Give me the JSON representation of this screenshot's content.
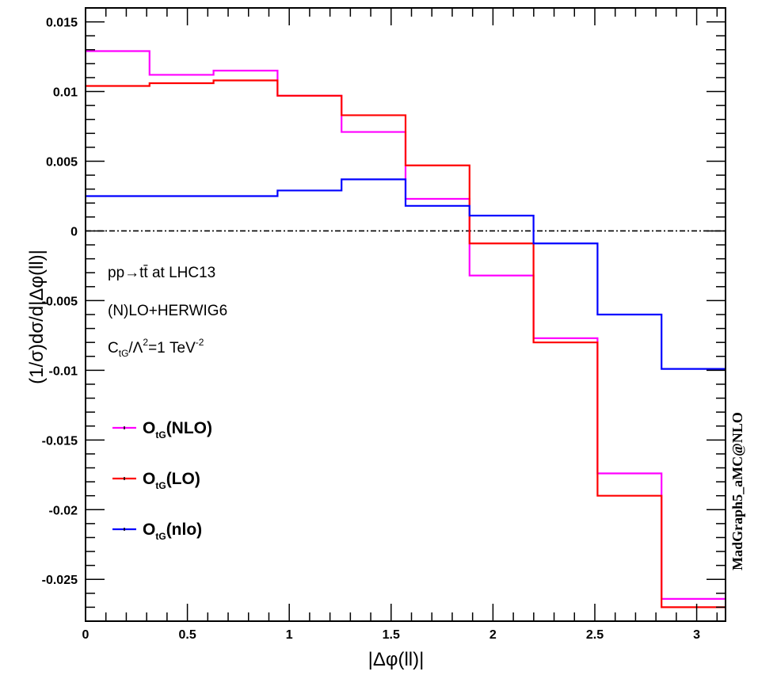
{
  "chart_data": {
    "type": "line",
    "step": true,
    "xlabel": "|Δφ(ll)|",
    "ylabel": "(1/σ)dσ/d|Δφ(ll)|",
    "xlim": [
      0,
      3.1416
    ],
    "ylim": [
      -0.028,
      0.016
    ],
    "x_ticks": [
      0,
      0.5,
      1,
      1.5,
      2,
      2.5,
      3
    ],
    "x_tick_labels": [
      "0",
      "0.5",
      "1",
      "1.5",
      "2",
      "2.5",
      "3"
    ],
    "y_ticks": [
      0.015,
      0.01,
      0.005,
      0,
      -0.005,
      -0.01,
      -0.015,
      -0.02,
      -0.025
    ],
    "y_tick_labels": [
      "0.015",
      "0.01",
      "0.005",
      "0",
      "-0.005",
      "-0.01",
      "-0.015",
      "-0.02",
      "-0.025"
    ],
    "zero_line": true,
    "bin_edges": [
      0,
      0.31416,
      0.62832,
      0.94248,
      1.25664,
      1.5708,
      1.88496,
      2.19911,
      2.51327,
      2.82743,
      3.14159
    ],
    "series": [
      {
        "name": "O_tG(NLO)",
        "color": "#ff00ff",
        "values": [
          0.0129,
          0.0112,
          0.0115,
          0.0097,
          0.0071,
          0.0023,
          -0.0032,
          -0.0077,
          -0.0174,
          -0.0264
        ]
      },
      {
        "name": "O_tG(LO)",
        "color": "#ff0000",
        "values": [
          0.0104,
          0.0106,
          0.0108,
          0.0097,
          0.0083,
          0.0047,
          -0.0009,
          -0.008,
          -0.019,
          -0.027
        ]
      },
      {
        "name": "O_tG(nlo)",
        "color": "#0000ff",
        "values": [
          0.0025,
          0.0025,
          0.0025,
          0.0029,
          0.0037,
          0.0018,
          0.0011,
          -0.0009,
          -0.006,
          -0.0099
        ]
      }
    ],
    "annotations": {
      "process": "pp→tt̄ at LHC13",
      "generator": "(N)LO+HERWIG6",
      "coupling_main": "C",
      "coupling_sub": "tG",
      "coupling_mid": "/Λ",
      "coupling_sup1": "2",
      "coupling_rest": "=1 TeV",
      "coupling_sup2": "-2"
    },
    "legend": {
      "placement": "left",
      "items": [
        {
          "main": "O",
          "sub": "tG",
          "tail": "(NLO)",
          "color": "#ff00ff"
        },
        {
          "main": "O",
          "sub": "tG",
          "tail": "(LO)",
          "color": "#ff0000"
        },
        {
          "main": "O",
          "sub": "tG",
          "tail": "(nlo)",
          "color": "#0000ff"
        }
      ]
    },
    "watermark": "MadGraph5_aMC@NLO"
  }
}
